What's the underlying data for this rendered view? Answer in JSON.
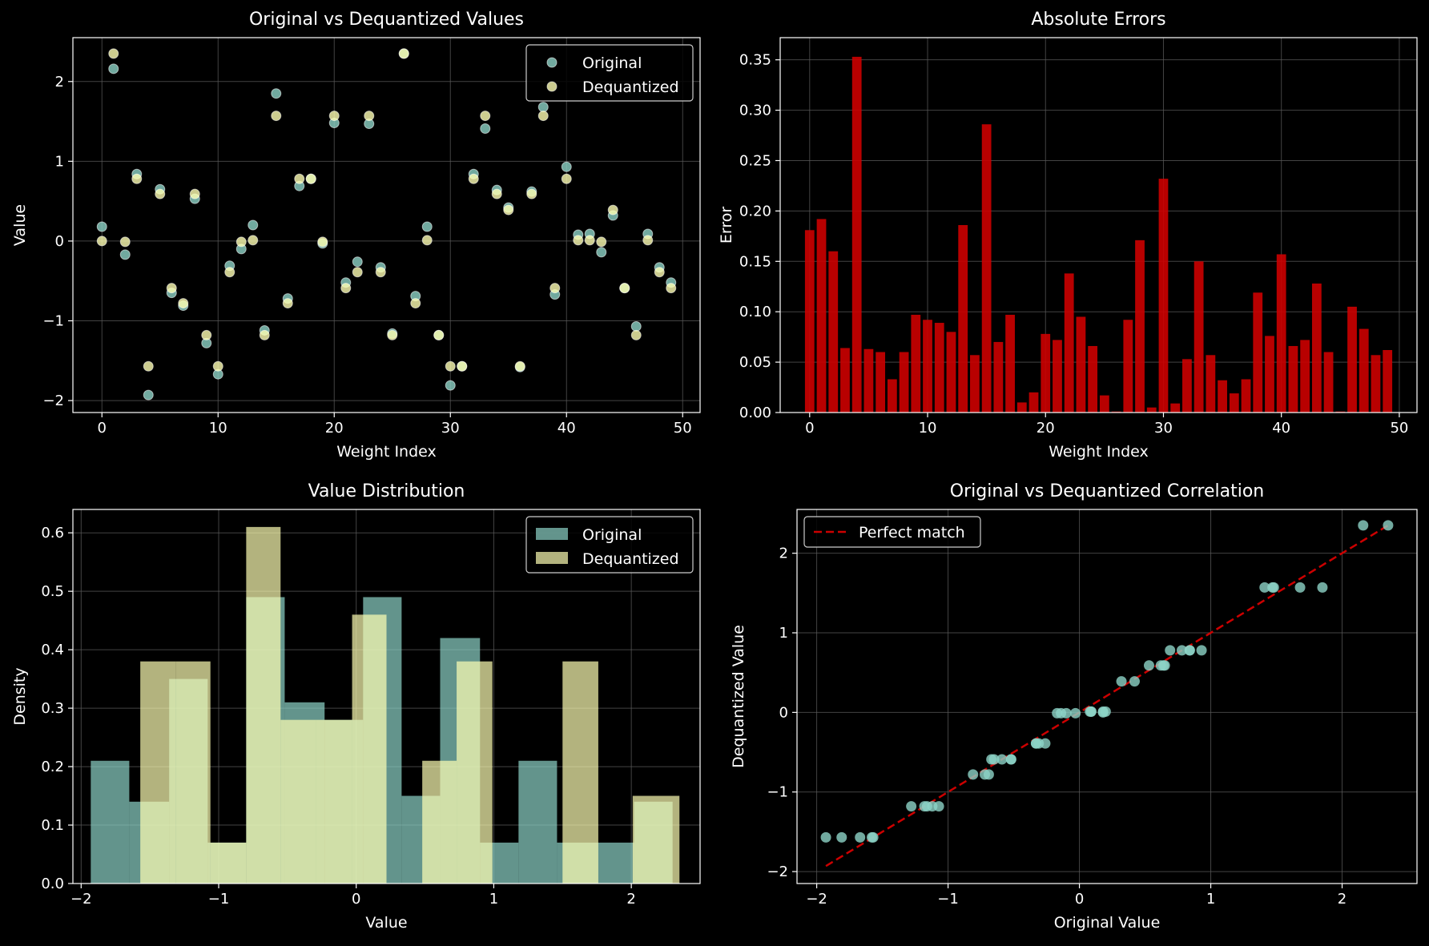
{
  "figure": {
    "background": "#000000",
    "axis_color": "#ffffff",
    "grid_color": "#5a5a5a"
  },
  "chart_data": [
    {
      "id": "scatter-values",
      "type": "scatter",
      "title": "Original vs Dequantized Values",
      "xlabel": "Weight Index",
      "ylabel": "Value",
      "xlim": [
        -2.5,
        51.5
      ],
      "ylim": [
        -2.15,
        2.55
      ],
      "xticks": [
        0,
        10,
        20,
        30,
        40,
        50
      ],
      "xtick_labels": [
        "0",
        "10",
        "20",
        "30",
        "40",
        "50"
      ],
      "yticks": [
        -2,
        -1,
        0,
        1,
        2
      ],
      "ytick_labels": [
        "−2",
        "−1",
        "0",
        "1",
        "2"
      ],
      "grid": true,
      "legend": "top-right",
      "series": [
        {
          "name": "Original",
          "color": "#8dd3c7",
          "x": [
            0,
            1,
            2,
            3,
            4,
            5,
            6,
            7,
            8,
            9,
            10,
            11,
            12,
            13,
            14,
            15,
            16,
            17,
            18,
            19,
            20,
            21,
            22,
            23,
            24,
            25,
            26,
            27,
            28,
            29,
            30,
            31,
            32,
            33,
            34,
            35,
            36,
            37,
            38,
            39,
            40,
            41,
            42,
            43,
            44,
            45,
            46,
            47,
            48,
            49
          ],
          "y": [
            0.18,
            2.16,
            -0.17,
            0.84,
            -1.93,
            0.65,
            -0.65,
            -0.81,
            0.53,
            -1.28,
            -1.67,
            -0.31,
            -0.1,
            0.2,
            -1.12,
            1.85,
            -0.72,
            0.69,
            0.78,
            -0.03,
            1.48,
            -0.52,
            -0.26,
            1.47,
            -0.33,
            -1.16,
            2.35,
            -0.69,
            0.18,
            -1.18,
            -1.81,
            -1.57,
            0.84,
            1.41,
            0.64,
            0.42,
            -1.58,
            0.62,
            1.68,
            -0.67,
            0.93,
            0.08,
            0.09,
            -0.14,
            0.32,
            -0.59,
            -1.07,
            0.09,
            -0.33,
            -0.52
          ]
        },
        {
          "name": "Dequantized",
          "color": "#ffffb3",
          "x": [
            0,
            1,
            2,
            3,
            4,
            5,
            6,
            7,
            8,
            9,
            10,
            11,
            12,
            13,
            14,
            15,
            16,
            17,
            18,
            19,
            20,
            21,
            22,
            23,
            24,
            25,
            26,
            27,
            28,
            29,
            30,
            31,
            32,
            33,
            34,
            35,
            36,
            37,
            38,
            39,
            40,
            41,
            42,
            43,
            44,
            45,
            46,
            47,
            48,
            49
          ],
          "y": [
            0,
            2.35,
            -0.01,
            0.78,
            -1.57,
            0.59,
            -0.59,
            -0.78,
            0.59,
            -1.18,
            -1.57,
            -0.39,
            -0.01,
            0.01,
            -1.18,
            1.57,
            -0.78,
            0.78,
            0.78,
            -0.01,
            1.57,
            -0.59,
            -0.39,
            1.57,
            -0.39,
            -1.18,
            2.35,
            -0.78,
            0.01,
            -1.18,
            -1.57,
            -1.57,
            0.78,
            1.57,
            0.59,
            0.39,
            -1.57,
            0.59,
            1.57,
            -0.59,
            0.78,
            0.01,
            0.01,
            -0.01,
            0.39,
            -0.59,
            -1.18,
            0.01,
            -0.39,
            -0.59
          ]
        }
      ]
    },
    {
      "id": "bar-errors",
      "type": "bar",
      "title": "Absolute Errors",
      "xlabel": "Weight Index",
      "ylabel": "Error",
      "xlim": [
        -2.5,
        51.5
      ],
      "ylim": [
        0,
        0.372
      ],
      "xticks": [
        0,
        10,
        20,
        30,
        40,
        50
      ],
      "xtick_labels": [
        "0",
        "10",
        "20",
        "30",
        "40",
        "50"
      ],
      "yticks": [
        0,
        0.05,
        0.1,
        0.15,
        0.2,
        0.25,
        0.3,
        0.35
      ],
      "ytick_labels": [
        "0.00",
        "0.05",
        "0.10",
        "0.15",
        "0.20",
        "0.25",
        "0.30",
        "0.35"
      ],
      "grid": true,
      "series": [
        {
          "color": "#cc0000",
          "x": [
            0,
            1,
            2,
            3,
            4,
            5,
            6,
            7,
            8,
            9,
            10,
            11,
            12,
            13,
            14,
            15,
            16,
            17,
            18,
            19,
            20,
            21,
            22,
            23,
            24,
            25,
            26,
            27,
            28,
            29,
            30,
            31,
            32,
            33,
            34,
            35,
            36,
            37,
            38,
            39,
            40,
            41,
            42,
            43,
            44,
            45,
            46,
            47,
            48,
            49
          ],
          "values": [
            0.181,
            0.192,
            0.16,
            0.064,
            0.353,
            0.063,
            0.06,
            0.033,
            0.06,
            0.097,
            0.092,
            0.089,
            0.08,
            0.186,
            0.057,
            0.286,
            0.07,
            0.097,
            0.01,
            0.02,
            0.078,
            0.072,
            0.138,
            0.095,
            0.066,
            0.017,
            0.001,
            0.092,
            0.171,
            0.005,
            0.232,
            0.009,
            0.053,
            0.15,
            0.057,
            0.032,
            0.019,
            0.033,
            0.119,
            0.076,
            0.157,
            0.066,
            0.072,
            0.128,
            0.06,
            0.001,
            0.105,
            0.083,
            0.057,
            0.062
          ]
        }
      ]
    },
    {
      "id": "hist-distribution",
      "type": "bar",
      "title": "Value Distribution",
      "xlabel": "Value",
      "ylabel": "Density",
      "xlim": [
        -2.06,
        2.5
      ],
      "ylim": [
        0,
        0.64
      ],
      "xticks": [
        -2,
        -1,
        0,
        1,
        2
      ],
      "xtick_labels": [
        "−2",
        "−1",
        "0",
        "1",
        "2"
      ],
      "yticks": [
        0,
        0.1,
        0.2,
        0.3,
        0.4,
        0.5,
        0.6
      ],
      "ytick_labels": [
        "0.0",
        "0.1",
        "0.2",
        "0.3",
        "0.4",
        "0.5",
        "0.6"
      ],
      "grid": true,
      "legend": "top-right",
      "series": [
        {
          "name": "Original",
          "color": "#8dd3c7",
          "bin_edges": [
            -1.93,
            -1.65,
            -1.36,
            -1.08,
            -0.8,
            -0.52,
            -0.23,
            0.05,
            0.33,
            0.61,
            0.9,
            1.18,
            1.46,
            1.74,
            2.02,
            2.3
          ],
          "values": [
            0.21,
            0.14,
            0.35,
            0.07,
            0.49,
            0.31,
            0.28,
            0.49,
            0.15,
            0.42,
            0.07,
            0.21,
            0.07,
            0.07,
            0.14
          ]
        },
        {
          "name": "Dequantized",
          "color": "#ffffb3",
          "bin_edges": [
            -1.57,
            -1.31,
            -1.06,
            -0.8,
            -0.55,
            -0.29,
            -0.03,
            0.22,
            0.48,
            0.73,
            0.99,
            1.25,
            1.5,
            1.76,
            2.01,
            2.35
          ],
          "values": [
            0.38,
            0.38,
            0.07,
            0.61,
            0.28,
            0.28,
            0.46,
            0.0,
            0.21,
            0.38,
            0.0,
            0.0,
            0.38,
            0.0,
            0.15
          ]
        }
      ]
    },
    {
      "id": "scatter-correlation",
      "type": "scatter",
      "title": "Original vs Dequantized Correlation",
      "xlabel": "Original Value",
      "ylabel": "Dequantized Value",
      "xlim": [
        -2.15,
        2.57
      ],
      "ylim": [
        -2.15,
        2.55
      ],
      "xticks": [
        -2,
        -1,
        0,
        1,
        2
      ],
      "xtick_labels": [
        "−2",
        "−1",
        "0",
        "1",
        "2"
      ],
      "yticks": [
        -2,
        -1,
        0,
        1,
        2
      ],
      "ytick_labels": [
        "−2",
        "−1",
        "0",
        "1",
        "2"
      ],
      "grid": true,
      "legend": "top-left",
      "reference_line": {
        "name": "Perfect match",
        "color": "#cc0000",
        "x": [
          -1.93,
          2.35
        ],
        "y": [
          -1.93,
          2.35
        ]
      },
      "series": [
        {
          "color": "#8dd3c7",
          "x": [
            0.18,
            2.16,
            -0.17,
            0.84,
            -1.93,
            0.65,
            -0.65,
            -0.81,
            0.53,
            -1.28,
            -1.67,
            -0.31,
            -0.1,
            0.2,
            -1.12,
            1.85,
            -0.72,
            0.69,
            0.78,
            -0.03,
            1.48,
            -0.52,
            -0.26,
            1.47,
            -0.33,
            -1.16,
            2.35,
            -0.69,
            0.18,
            -1.18,
            -1.81,
            -1.57,
            0.84,
            1.41,
            0.64,
            0.42,
            -1.58,
            0.62,
            1.68,
            -0.67,
            0.93,
            0.08,
            0.09,
            -0.14,
            0.32,
            -0.59,
            -1.07,
            0.09,
            -0.33,
            -0.52
          ],
          "y": [
            0,
            2.35,
            -0.01,
            0.78,
            -1.57,
            0.59,
            -0.59,
            -0.78,
            0.59,
            -1.18,
            -1.57,
            -0.39,
            -0.01,
            0.01,
            -1.18,
            1.57,
            -0.78,
            0.78,
            0.78,
            -0.01,
            1.57,
            -0.59,
            -0.39,
            1.57,
            -0.39,
            -1.18,
            2.35,
            -0.78,
            0.01,
            -1.18,
            -1.57,
            -1.57,
            0.78,
            1.57,
            0.59,
            0.39,
            -1.57,
            0.59,
            1.57,
            -0.59,
            0.78,
            0.01,
            0.01,
            -0.01,
            0.39,
            -0.59,
            -1.18,
            0.01,
            -0.39,
            -0.59
          ]
        }
      ]
    }
  ]
}
